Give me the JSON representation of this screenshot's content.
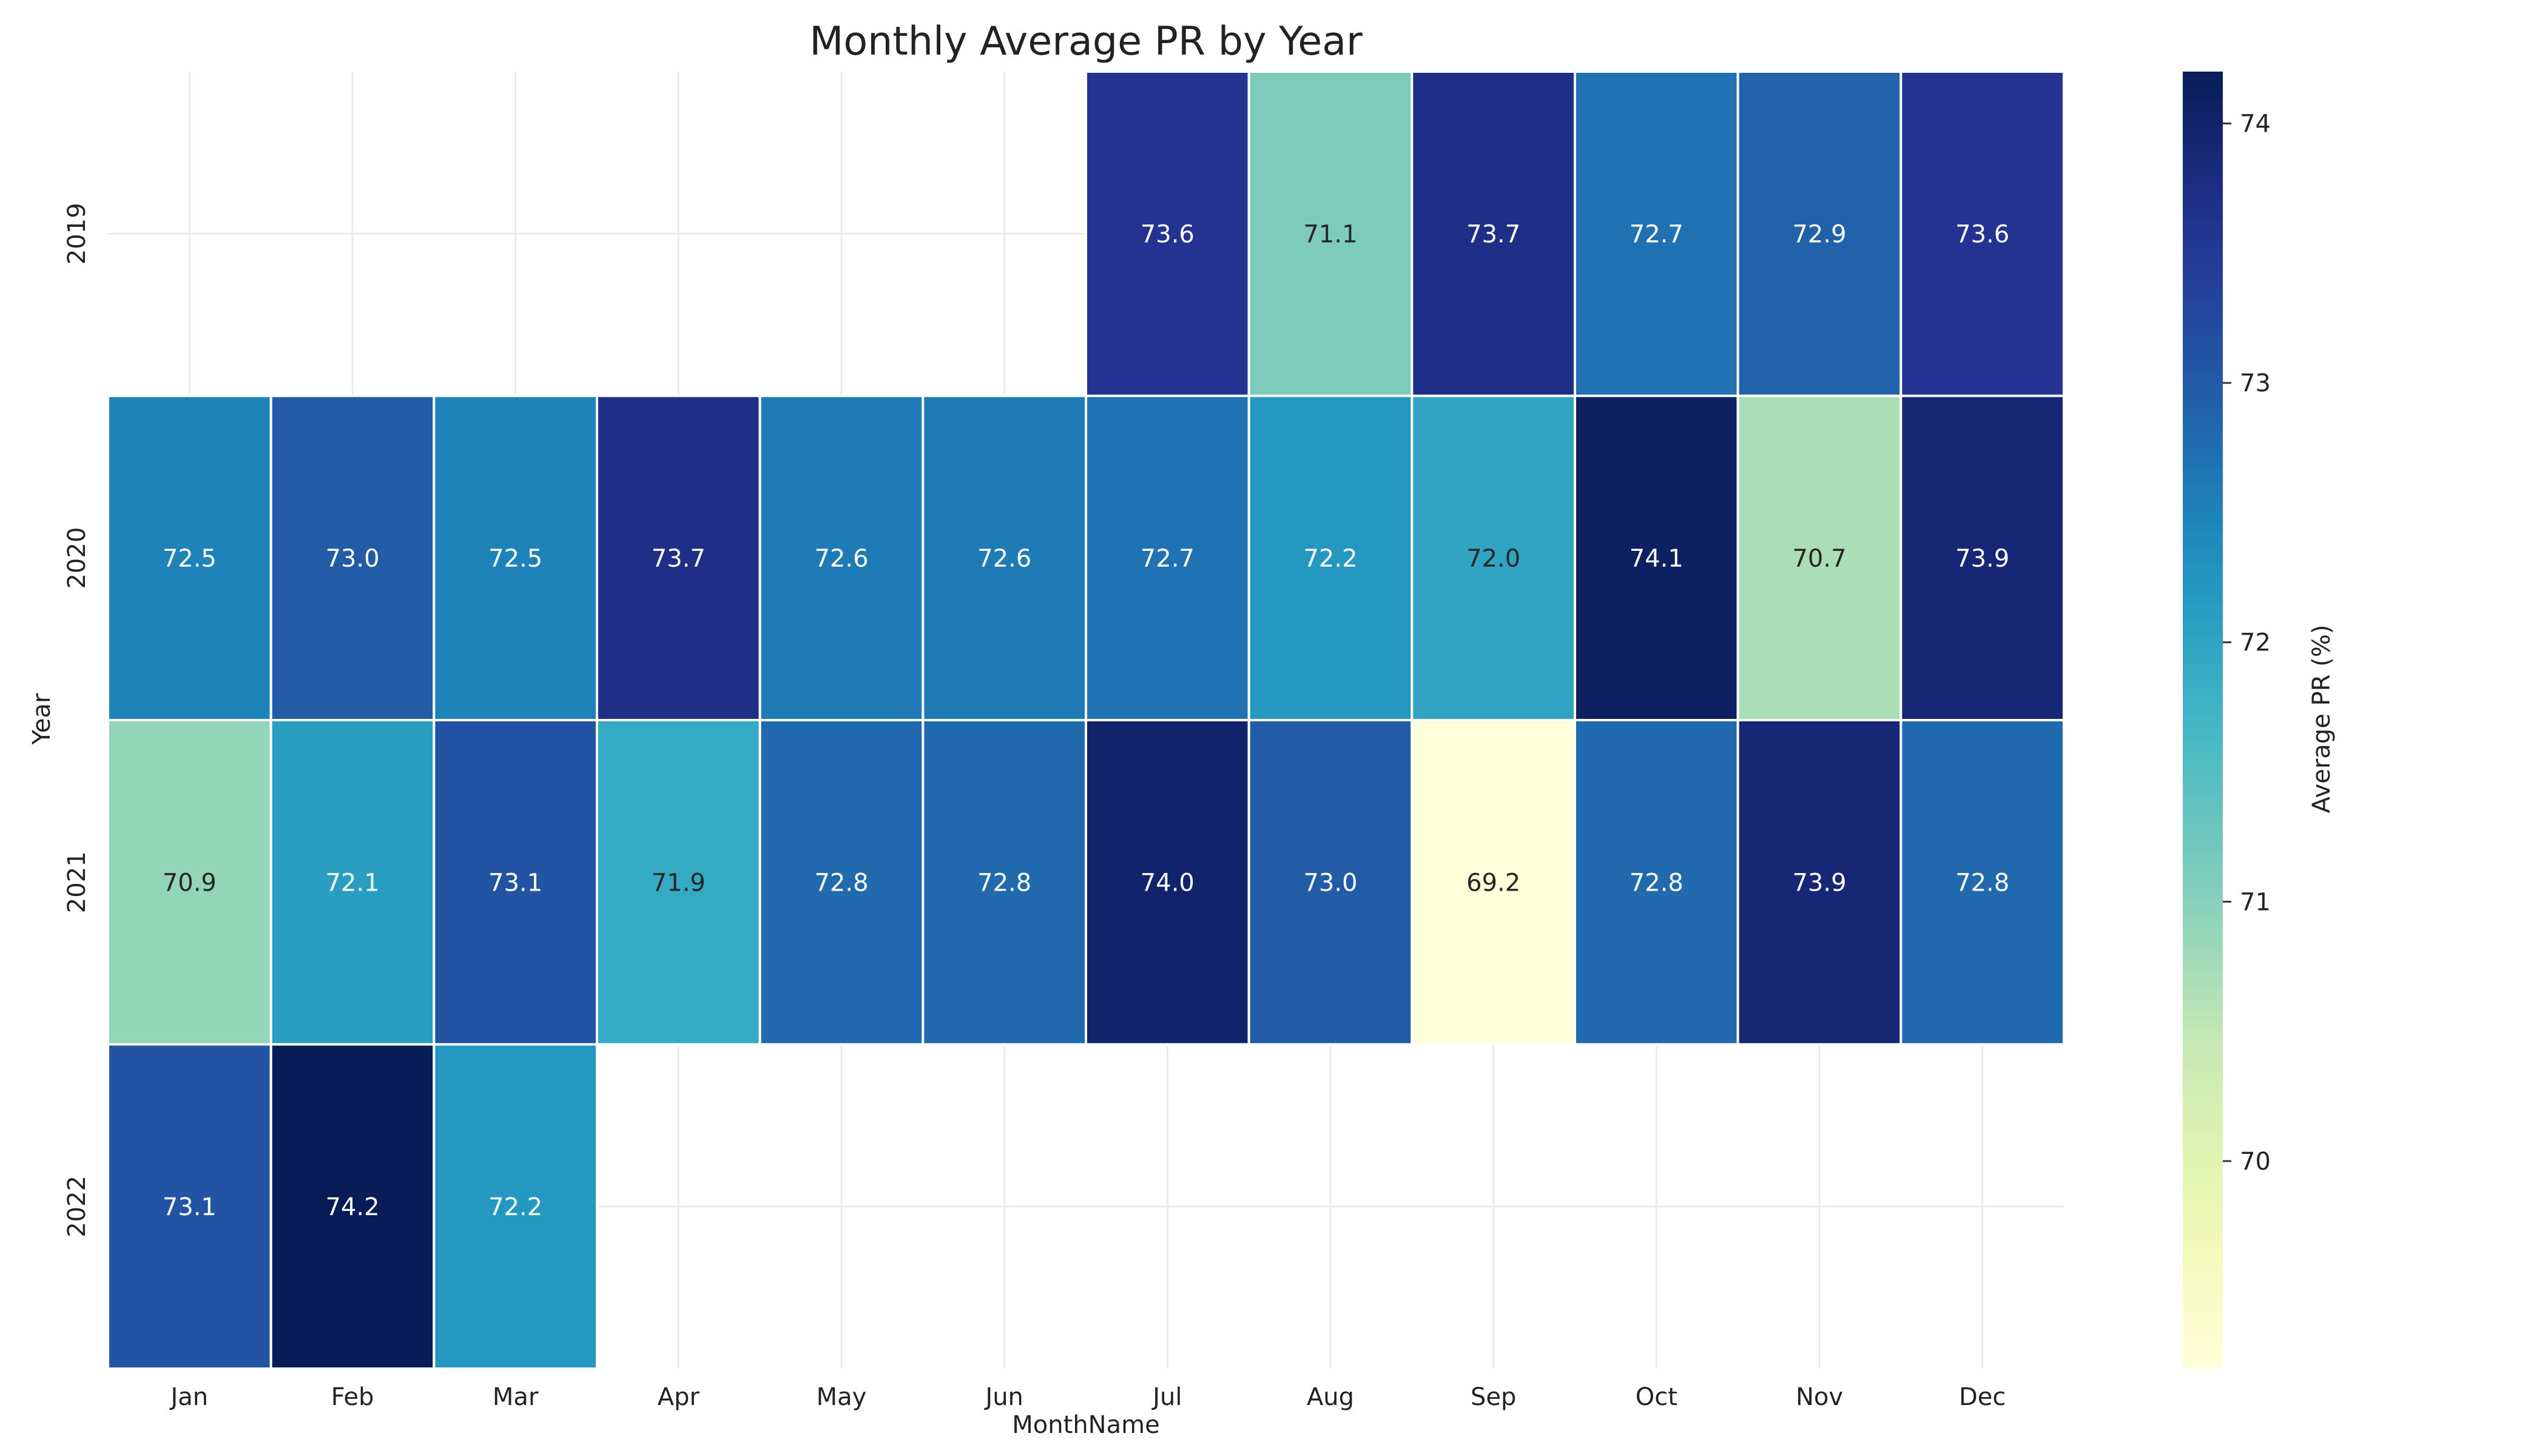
{
  "chart_data": {
    "type": "heatmap",
    "title": "Monthly Average PR by Year",
    "xlabel": "MonthName",
    "ylabel": "Year",
    "colorbar_label": "Average PR (%)",
    "colormap": "YlGnBu",
    "color_range": [
      69.2,
      74.2
    ],
    "colorbar_ticks": [
      "70",
      "71",
      "72",
      "73",
      "74"
    ],
    "value_format": "one decimal, annotated in each cell",
    "grid": true,
    "x_categories": [
      "Jan",
      "Feb",
      "Mar",
      "Apr",
      "May",
      "Jun",
      "Jul",
      "Aug",
      "Sep",
      "Oct",
      "Nov",
      "Dec"
    ],
    "y_categories": [
      "2019",
      "2020",
      "2021",
      "2022"
    ],
    "values": [
      [
        null,
        null,
        null,
        null,
        null,
        null,
        73.6,
        71.1,
        73.7,
        72.7,
        72.9,
        73.6
      ],
      [
        72.5,
        73.0,
        72.5,
        73.7,
        72.6,
        72.6,
        72.7,
        72.2,
        72.0,
        74.1,
        70.7,
        73.9
      ],
      [
        70.9,
        72.1,
        73.1,
        71.9,
        72.8,
        72.8,
        74.0,
        73.0,
        69.2,
        72.8,
        73.9,
        72.8
      ],
      [
        73.1,
        74.2,
        72.2,
        null,
        null,
        null,
        null,
        null,
        null,
        null,
        null,
        null
      ]
    ],
    "cell_labels": [
      [
        null,
        null,
        null,
        null,
        null,
        null,
        "73.6",
        "71.1",
        "73.7",
        "72.7",
        "72.9",
        "73.6"
      ],
      [
        "72.5",
        "73.0",
        "72.5",
        "73.7",
        "72.6",
        "72.6",
        "72.7",
        "72.2",
        "72.0",
        "74.1",
        "70.7",
        "73.9"
      ],
      [
        "70.9",
        "72.1",
        "73.1",
        "71.9",
        "72.8",
        "72.8",
        "74.0",
        "73.0",
        "69.2",
        "72.8",
        "73.9",
        "72.8"
      ],
      [
        "73.1",
        "74.2",
        "72.2",
        null,
        null,
        null,
        null,
        null,
        null,
        null,
        null,
        null
      ]
    ]
  }
}
